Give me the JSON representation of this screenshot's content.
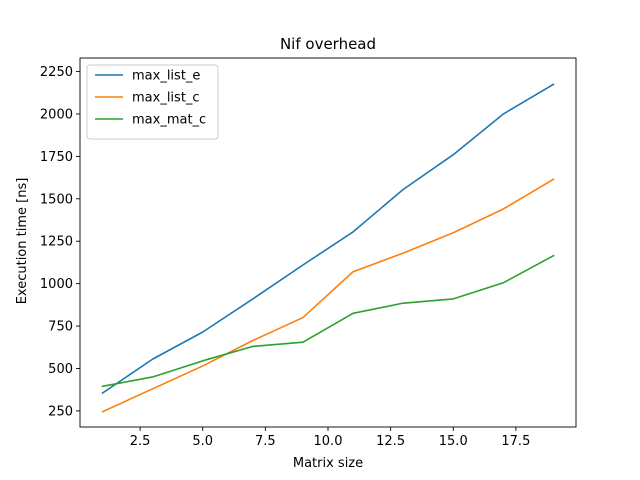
{
  "chart_data": {
    "type": "line",
    "title": "Nif overhead",
    "xlabel": "Matrix size",
    "ylabel": "Execution time [ns]",
    "x": [
      1,
      3,
      5,
      7,
      9,
      11,
      13,
      15,
      17,
      19
    ],
    "xlim": [
      0.1,
      19.9
    ],
    "ylim": [
      155,
      2330
    ],
    "xticks": [
      2.5,
      5.0,
      7.5,
      10.0,
      12.5,
      15.0,
      17.5
    ],
    "xtick_labels": [
      "2.5",
      "5.0",
      "7.5",
      "10.0",
      "12.5",
      "15.0",
      "17.5"
    ],
    "yticks": [
      250,
      500,
      750,
      1000,
      1250,
      1500,
      1750,
      2000,
      2250
    ],
    "ytick_labels": [
      "250",
      "500",
      "750",
      "1000",
      "1250",
      "1500",
      "1750",
      "2000",
      "2250"
    ],
    "grid": false,
    "legend_position": "top-left",
    "series": [
      {
        "name": "max_list_e",
        "color": "#1f77b4",
        "values": [
          355,
          555,
          715,
          910,
          1110,
          1305,
          1555,
          1760,
          2000,
          2175
        ]
      },
      {
        "name": "max_list_c",
        "color": "#ff7f0e",
        "values": [
          245,
          380,
          515,
          665,
          800,
          1070,
          1180,
          1300,
          1440,
          1615
        ]
      },
      {
        "name": "max_mat_c",
        "color": "#2ca02c",
        "values": [
          395,
          450,
          545,
          630,
          655,
          825,
          885,
          910,
          1005,
          1165
        ]
      }
    ]
  }
}
